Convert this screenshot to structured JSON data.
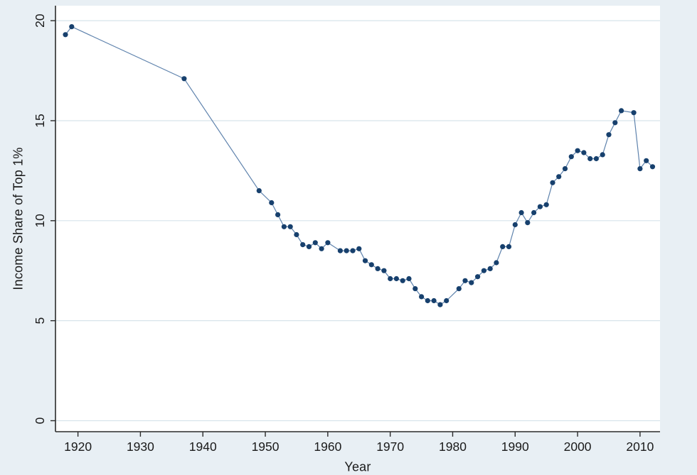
{
  "chart_data": {
    "type": "line",
    "marker": "circle",
    "title": "",
    "xlabel": "Year",
    "ylabel": "Income Share of Top 1%",
    "x": [
      1918,
      1919,
      1937,
      1949,
      1951,
      1952,
      1953,
      1954,
      1955,
      1956,
      1957,
      1958,
      1959,
      1960,
      1962,
      1963,
      1964,
      1965,
      1966,
      1967,
      1968,
      1969,
      1970,
      1971,
      1972,
      1973,
      1974,
      1975,
      1976,
      1977,
      1978,
      1979,
      1981,
      1982,
      1983,
      1984,
      1985,
      1986,
      1987,
      1988,
      1989,
      1990,
      1991,
      1992,
      1993,
      1994,
      1995,
      1996,
      1997,
      1998,
      1999,
      2000,
      2001,
      2002,
      2003,
      2004,
      2005,
      2006,
      2007,
      2009,
      2010,
      2011,
      2012
    ],
    "y": [
      19.3,
      19.7,
      17.1,
      11.5,
      10.9,
      10.3,
      9.7,
      9.7,
      9.3,
      8.8,
      8.7,
      8.9,
      8.6,
      8.9,
      8.5,
      8.5,
      8.5,
      8.6,
      8.0,
      7.8,
      7.6,
      7.5,
      7.1,
      7.1,
      7.0,
      7.1,
      6.6,
      6.2,
      6.0,
      6.0,
      5.8,
      6.0,
      6.6,
      7.0,
      6.9,
      7.2,
      7.5,
      7.6,
      7.9,
      8.7,
      8.7,
      9.8,
      10.4,
      9.9,
      10.4,
      10.7,
      10.8,
      11.9,
      12.2,
      12.6,
      13.2,
      13.5,
      13.4,
      13.1,
      13.1,
      13.3,
      14.3,
      14.9,
      15.5,
      15.4,
      12.6,
      13.0,
      12.7
    ],
    "xticks": [
      1920,
      1930,
      1940,
      1950,
      1960,
      1970,
      1980,
      1990,
      2000,
      2010
    ],
    "yticks": [
      0,
      5,
      10,
      15,
      20
    ],
    "xlim": [
      1916.4,
      2013.2
    ],
    "ylim": [
      -0.55,
      20.75
    ],
    "grid": "horizontal",
    "legend": "none",
    "colors": {
      "canvas_background": "#e8eff4",
      "plot_background": "#ffffff",
      "gridline": "#d7e4eb",
      "marker": "#17406d",
      "line": "#5f83ad",
      "axis": "#2b2b2b",
      "tick_label": "#1a1a1a"
    }
  }
}
